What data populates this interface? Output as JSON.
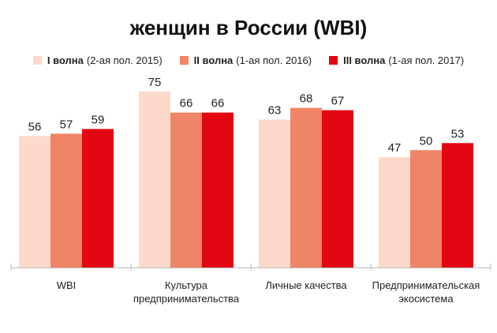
{
  "title": "женщин в России (WBI)",
  "chart_data": {
    "type": "bar",
    "title": "женщин в России (WBI)",
    "categories": [
      [
        "WBI"
      ],
      [
        "Культура",
        "предпринимательства"
      ],
      [
        "Личные качества"
      ],
      [
        "Предпринимательская",
        "экосистема"
      ]
    ],
    "series": [
      {
        "name": "I волна",
        "period": "(2-ая пол. 2015)",
        "color": "#FCD9CB",
        "values": [
          56,
          75,
          63,
          47
        ]
      },
      {
        "name": "II волна",
        "period": "(1-ая пол. 2016)",
        "color": "#F08466",
        "values": [
          57,
          66,
          68,
          50
        ]
      },
      {
        "name": "III волна",
        "period": "(1-ая пол. 2017)",
        "color": "#E30613",
        "values": [
          59,
          66,
          67,
          53
        ]
      }
    ],
    "ylim": [
      0,
      80
    ],
    "grid": false,
    "legend_position": "top"
  }
}
